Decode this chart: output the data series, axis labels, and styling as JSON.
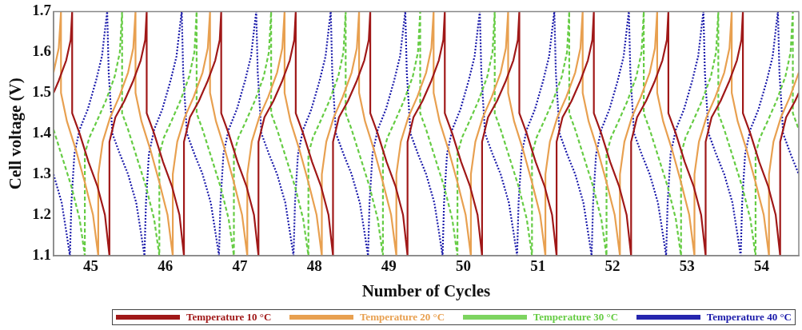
{
  "chart_data": {
    "type": "line",
    "xlabel": "Number of Cycles",
    "ylabel": "Cell voltage (V)",
    "xlim": [
      44.5,
      54.5
    ],
    "ylim": [
      1.1,
      1.7
    ],
    "xticks": [
      45,
      46,
      47,
      48,
      49,
      50,
      51,
      52,
      53,
      54
    ],
    "yticks": [
      1.1,
      1.2,
      1.3,
      1.4,
      1.5,
      1.6,
      1.7
    ],
    "grid": false,
    "legend": "bottom",
    "marker": "none",
    "series": [
      {
        "name": "Temperature 10 °C",
        "color": "#a01818",
        "line_style": "solid",
        "x": [
          44.5,
          44.57,
          44.67,
          44.73,
          44.75,
          44.75,
          44.85,
          44.97,
          45.09,
          45.19,
          45.25,
          45.25,
          45.33,
          45.45,
          45.57,
          45.67,
          45.73,
          45.75,
          45.75,
          45.85,
          45.97,
          46.09,
          46.19,
          46.25,
          46.25,
          46.33,
          46.45,
          46.57,
          46.67,
          46.73,
          46.75,
          46.75,
          46.85,
          46.97,
          47.09,
          47.19,
          47.25,
          47.25,
          47.33,
          47.45,
          47.57,
          47.67,
          47.73,
          47.75,
          47.75,
          47.85,
          47.97,
          48.09,
          48.19,
          48.25,
          48.25,
          48.33,
          48.45,
          48.57,
          48.67,
          48.73,
          48.75,
          48.75,
          48.85,
          48.97,
          49.09,
          49.19,
          49.25,
          49.25,
          49.33,
          49.45,
          49.57,
          49.67,
          49.73,
          49.75,
          49.75,
          49.85,
          49.97,
          50.09,
          50.19,
          50.25,
          50.25,
          50.33,
          50.45,
          50.57,
          50.67,
          50.73,
          50.75,
          50.75,
          50.85,
          50.97,
          51.09,
          51.19,
          51.25,
          51.25,
          51.33,
          51.45,
          51.57,
          51.67,
          51.73,
          51.75,
          51.75,
          51.85,
          51.97,
          52.09,
          52.19,
          52.25,
          52.25,
          52.33,
          52.45,
          52.57,
          52.67,
          52.73,
          52.75,
          52.75,
          52.85,
          52.97,
          53.09,
          53.19,
          53.25,
          53.25,
          53.33,
          53.45,
          53.57,
          53.67,
          53.73,
          53.75,
          53.75,
          53.85,
          53.97,
          54.09,
          54.19,
          54.25,
          54.25,
          54.33,
          54.45,
          54.5
        ],
        "values": [
          1.5,
          1.53,
          1.58,
          1.63,
          1.7,
          1.45,
          1.4,
          1.33,
          1.27,
          1.2,
          1.1,
          1.38,
          1.44,
          1.48,
          1.53,
          1.58,
          1.63,
          1.7,
          1.45,
          1.4,
          1.33,
          1.27,
          1.2,
          1.1,
          1.38,
          1.44,
          1.48,
          1.53,
          1.58,
          1.63,
          1.7,
          1.45,
          1.4,
          1.33,
          1.27,
          1.2,
          1.1,
          1.38,
          1.44,
          1.48,
          1.53,
          1.58,
          1.63,
          1.7,
          1.45,
          1.4,
          1.33,
          1.27,
          1.2,
          1.1,
          1.38,
          1.44,
          1.48,
          1.53,
          1.58,
          1.63,
          1.7,
          1.45,
          1.4,
          1.33,
          1.27,
          1.2,
          1.1,
          1.38,
          1.44,
          1.48,
          1.53,
          1.58,
          1.63,
          1.7,
          1.45,
          1.4,
          1.33,
          1.27,
          1.2,
          1.1,
          1.38,
          1.44,
          1.48,
          1.53,
          1.58,
          1.63,
          1.7,
          1.45,
          1.4,
          1.33,
          1.27,
          1.2,
          1.1,
          1.38,
          1.44,
          1.48,
          1.53,
          1.58,
          1.63,
          1.7,
          1.45,
          1.4,
          1.33,
          1.27,
          1.2,
          1.1,
          1.38,
          1.44,
          1.48,
          1.53,
          1.58,
          1.63,
          1.7,
          1.45,
          1.4,
          1.33,
          1.27,
          1.2,
          1.1,
          1.38,
          1.44,
          1.48,
          1.53,
          1.58,
          1.63,
          1.7,
          1.45,
          1.4,
          1.33,
          1.27,
          1.2,
          1.1,
          1.38,
          1.44,
          1.48,
          1.5
        ]
      },
      {
        "name": "Temperature 20 °C",
        "color": "#e8a050",
        "line_style": "solid",
        "x": [
          44.5,
          44.57,
          44.6,
          44.6,
          44.68,
          44.8,
          44.92,
          45.03,
          45.1,
          45.1,
          45.16,
          45.26,
          45.38,
          45.5,
          45.57,
          45.6,
          45.6,
          45.68,
          45.8,
          45.92,
          46.03,
          46.1,
          46.1,
          46.16,
          46.26,
          46.38,
          46.5,
          46.57,
          46.6,
          46.6,
          46.68,
          46.8,
          46.92,
          47.03,
          47.1,
          47.1,
          47.16,
          47.26,
          47.38,
          47.5,
          47.57,
          47.6,
          47.6,
          47.68,
          47.8,
          47.92,
          48.03,
          48.1,
          48.1,
          48.16,
          48.26,
          48.38,
          48.5,
          48.57,
          48.6,
          48.6,
          48.68,
          48.8,
          48.92,
          49.03,
          49.1,
          49.1,
          49.16,
          49.26,
          49.38,
          49.5,
          49.57,
          49.6,
          49.6,
          49.68,
          49.8,
          49.92,
          50.03,
          50.1,
          50.1,
          50.16,
          50.26,
          50.38,
          50.5,
          50.57,
          50.6,
          50.6,
          50.68,
          50.8,
          50.92,
          51.03,
          51.1,
          51.1,
          51.16,
          51.26,
          51.38,
          51.5,
          51.57,
          51.6,
          51.6,
          51.68,
          51.8,
          51.92,
          52.03,
          52.1,
          52.1,
          52.16,
          52.26,
          52.38,
          52.5,
          52.57,
          52.6,
          52.6,
          52.68,
          52.8,
          52.92,
          53.03,
          53.1,
          53.1,
          53.16,
          53.26,
          53.38,
          53.5,
          53.57,
          53.6,
          53.6,
          53.68,
          53.8,
          53.92,
          54.03,
          54.1,
          54.1,
          54.16,
          54.26,
          54.38,
          54.5
        ],
        "values": [
          1.55,
          1.61,
          1.7,
          1.5,
          1.43,
          1.36,
          1.28,
          1.2,
          1.1,
          1.3,
          1.38,
          1.44,
          1.49,
          1.55,
          1.61,
          1.7,
          1.5,
          1.43,
          1.36,
          1.28,
          1.2,
          1.1,
          1.3,
          1.38,
          1.44,
          1.49,
          1.55,
          1.61,
          1.7,
          1.5,
          1.43,
          1.36,
          1.28,
          1.2,
          1.1,
          1.3,
          1.38,
          1.44,
          1.49,
          1.55,
          1.61,
          1.7,
          1.5,
          1.43,
          1.36,
          1.28,
          1.2,
          1.1,
          1.3,
          1.38,
          1.44,
          1.49,
          1.55,
          1.61,
          1.7,
          1.5,
          1.43,
          1.36,
          1.28,
          1.2,
          1.1,
          1.3,
          1.38,
          1.44,
          1.49,
          1.55,
          1.61,
          1.7,
          1.5,
          1.43,
          1.36,
          1.28,
          1.2,
          1.1,
          1.3,
          1.38,
          1.44,
          1.49,
          1.55,
          1.61,
          1.7,
          1.5,
          1.43,
          1.36,
          1.28,
          1.2,
          1.1,
          1.3,
          1.38,
          1.44,
          1.49,
          1.55,
          1.61,
          1.7,
          1.5,
          1.43,
          1.36,
          1.28,
          1.2,
          1.1,
          1.3,
          1.38,
          1.44,
          1.49,
          1.55,
          1.61,
          1.7,
          1.5,
          1.43,
          1.36,
          1.28,
          1.2,
          1.1,
          1.3,
          1.38,
          1.44,
          1.49,
          1.55,
          1.61,
          1.7,
          1.5,
          1.43,
          1.36,
          1.28,
          1.2,
          1.1,
          1.3,
          1.38,
          1.44,
          1.49,
          1.55
        ]
      },
      {
        "name": "Temperature 30 °C",
        "color": "#66cc44",
        "line_style": "dashed",
        "x": [
          44.5,
          44.62,
          44.74,
          44.85,
          44.92,
          44.92,
          44.98,
          45.08,
          45.2,
          45.32,
          45.39,
          45.42,
          45.42,
          45.5,
          45.62,
          45.74,
          45.85,
          45.92,
          45.92,
          45.98,
          46.08,
          46.2,
          46.32,
          46.39,
          46.42,
          46.42,
          46.5,
          46.62,
          46.74,
          46.85,
          46.92,
          46.92,
          46.98,
          47.08,
          47.2,
          47.32,
          47.39,
          47.42,
          47.42,
          47.5,
          47.62,
          47.74,
          47.85,
          47.92,
          47.92,
          47.98,
          48.08,
          48.2,
          48.32,
          48.39,
          48.42,
          48.42,
          48.5,
          48.62,
          48.74,
          48.85,
          48.92,
          48.92,
          48.98,
          49.08,
          49.2,
          49.32,
          49.39,
          49.42,
          49.42,
          49.5,
          49.62,
          49.74,
          49.85,
          49.92,
          49.92,
          49.98,
          50.08,
          50.2,
          50.32,
          50.39,
          50.42,
          50.42,
          50.5,
          50.62,
          50.74,
          50.85,
          50.92,
          50.92,
          50.98,
          51.08,
          51.2,
          51.32,
          51.39,
          51.42,
          51.42,
          51.5,
          51.62,
          51.74,
          51.85,
          51.92,
          51.92,
          51.98,
          52.08,
          52.2,
          52.32,
          52.39,
          52.42,
          52.42,
          52.5,
          52.62,
          52.74,
          52.85,
          52.92,
          52.92,
          52.98,
          53.08,
          53.2,
          53.32,
          53.39,
          53.42,
          53.42,
          53.5,
          53.62,
          53.74,
          53.85,
          53.92,
          53.92,
          53.98,
          54.08,
          54.2,
          54.32,
          54.39,
          54.42,
          54.42,
          54.5
        ],
        "values": [
          1.41,
          1.34,
          1.27,
          1.19,
          1.1,
          1.35,
          1.39,
          1.43,
          1.48,
          1.54,
          1.6,
          1.7,
          1.45,
          1.41,
          1.34,
          1.27,
          1.19,
          1.1,
          1.35,
          1.39,
          1.43,
          1.48,
          1.54,
          1.6,
          1.7,
          1.45,
          1.41,
          1.34,
          1.27,
          1.19,
          1.1,
          1.35,
          1.39,
          1.43,
          1.48,
          1.54,
          1.6,
          1.7,
          1.45,
          1.41,
          1.34,
          1.27,
          1.19,
          1.1,
          1.35,
          1.39,
          1.43,
          1.48,
          1.54,
          1.6,
          1.7,
          1.45,
          1.41,
          1.34,
          1.27,
          1.19,
          1.1,
          1.35,
          1.39,
          1.43,
          1.48,
          1.54,
          1.6,
          1.7,
          1.45,
          1.41,
          1.34,
          1.27,
          1.19,
          1.1,
          1.35,
          1.39,
          1.43,
          1.48,
          1.54,
          1.6,
          1.7,
          1.45,
          1.41,
          1.34,
          1.27,
          1.19,
          1.1,
          1.35,
          1.39,
          1.43,
          1.48,
          1.54,
          1.6,
          1.7,
          1.45,
          1.41,
          1.34,
          1.27,
          1.19,
          1.1,
          1.35,
          1.39,
          1.43,
          1.48,
          1.54,
          1.6,
          1.7,
          1.45,
          1.41,
          1.34,
          1.27,
          1.19,
          1.1,
          1.35,
          1.39,
          1.43,
          1.48,
          1.54,
          1.6,
          1.7,
          1.45,
          1.41,
          1.34,
          1.27,
          1.19,
          1.1,
          1.35,
          1.39,
          1.43,
          1.48,
          1.54,
          1.6,
          1.7,
          1.45,
          1.41
        ]
      },
      {
        "name": "Temperature 40 °C",
        "color": "#1a1aaa",
        "line_style": "dotted",
        "x": [
          44.5,
          44.61,
          44.67,
          44.72,
          44.74,
          44.78,
          44.85,
          44.96,
          45.07,
          45.15,
          45.2,
          45.22,
          45.24,
          45.29,
          45.39,
          45.5,
          45.61,
          45.67,
          45.72,
          45.74,
          45.78,
          45.85,
          45.96,
          46.07,
          46.15,
          46.2,
          46.22,
          46.24,
          46.29,
          46.39,
          46.5,
          46.61,
          46.67,
          46.72,
          46.74,
          46.78,
          46.85,
          46.96,
          47.07,
          47.15,
          47.2,
          47.22,
          47.24,
          47.29,
          47.39,
          47.5,
          47.61,
          47.67,
          47.72,
          47.74,
          47.78,
          47.85,
          47.96,
          48.07,
          48.15,
          48.2,
          48.22,
          48.24,
          48.29,
          48.39,
          48.5,
          48.61,
          48.67,
          48.72,
          48.74,
          48.78,
          48.85,
          48.96,
          49.07,
          49.15,
          49.2,
          49.22,
          49.24,
          49.29,
          49.39,
          49.5,
          49.61,
          49.67,
          49.72,
          49.74,
          49.78,
          49.85,
          49.96,
          50.07,
          50.15,
          50.2,
          50.22,
          50.24,
          50.29,
          50.39,
          50.5,
          50.61,
          50.67,
          50.72,
          50.74,
          50.78,
          50.85,
          50.96,
          51.07,
          51.15,
          51.2,
          51.22,
          51.24,
          51.29,
          51.39,
          51.5,
          51.61,
          51.67,
          51.72,
          51.74,
          51.78,
          51.85,
          51.96,
          52.07,
          52.15,
          52.2,
          52.22,
          52.24,
          52.29,
          52.39,
          52.5,
          52.61,
          52.67,
          52.72,
          52.74,
          52.78,
          52.85,
          52.96,
          53.07,
          53.15,
          53.2,
          53.22,
          53.24,
          53.29,
          53.39,
          53.5,
          53.61,
          53.67,
          53.72,
          53.74,
          53.78,
          53.85,
          53.96,
          54.07,
          54.15,
          54.2,
          54.22,
          54.24,
          54.29,
          54.39,
          54.5
        ],
        "values": [
          1.3,
          1.23,
          1.16,
          1.1,
          1.23,
          1.35,
          1.41,
          1.46,
          1.53,
          1.59,
          1.67,
          1.7,
          1.55,
          1.4,
          1.35,
          1.3,
          1.23,
          1.16,
          1.1,
          1.23,
          1.35,
          1.41,
          1.46,
          1.53,
          1.59,
          1.67,
          1.7,
          1.55,
          1.4,
          1.35,
          1.3,
          1.23,
          1.16,
          1.1,
          1.23,
          1.35,
          1.41,
          1.46,
          1.53,
          1.59,
          1.67,
          1.7,
          1.55,
          1.4,
          1.35,
          1.3,
          1.23,
          1.16,
          1.1,
          1.23,
          1.35,
          1.41,
          1.46,
          1.53,
          1.59,
          1.67,
          1.7,
          1.55,
          1.4,
          1.35,
          1.3,
          1.23,
          1.16,
          1.1,
          1.23,
          1.35,
          1.41,
          1.46,
          1.53,
          1.59,
          1.67,
          1.7,
          1.55,
          1.4,
          1.35,
          1.3,
          1.23,
          1.16,
          1.1,
          1.23,
          1.35,
          1.41,
          1.46,
          1.53,
          1.59,
          1.67,
          1.7,
          1.55,
          1.4,
          1.35,
          1.3,
          1.23,
          1.16,
          1.1,
          1.23,
          1.35,
          1.41,
          1.46,
          1.53,
          1.59,
          1.67,
          1.7,
          1.55,
          1.4,
          1.35,
          1.3,
          1.23,
          1.16,
          1.1,
          1.23,
          1.35,
          1.41,
          1.46,
          1.53,
          1.59,
          1.67,
          1.7,
          1.55,
          1.4,
          1.35,
          1.3,
          1.23,
          1.16,
          1.1,
          1.23,
          1.35,
          1.41,
          1.46,
          1.53,
          1.59,
          1.67,
          1.7,
          1.55,
          1.4,
          1.35,
          1.3,
          1.23,
          1.16,
          1.1,
          1.23,
          1.35,
          1.41,
          1.46,
          1.53,
          1.59,
          1.67,
          1.7,
          1.55,
          1.4,
          1.35,
          1.3
        ]
      }
    ]
  }
}
